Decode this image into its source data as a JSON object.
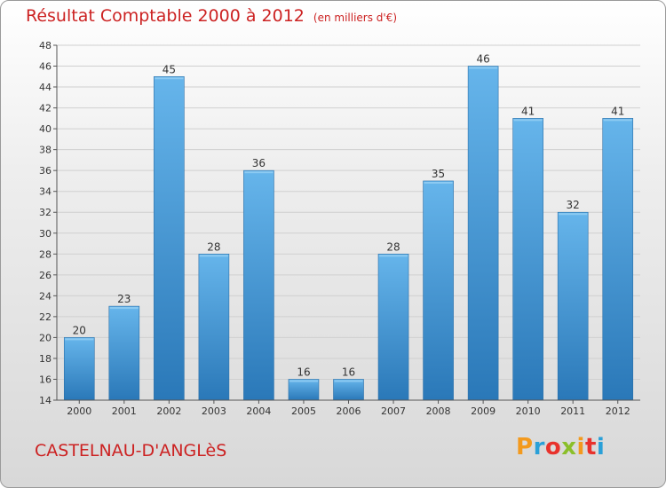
{
  "header": {
    "title": "Résultat Comptable 2000 à 2012",
    "subtitle": "(en milliers d'€)"
  },
  "footer": {
    "city": "CASTELNAU-D'ANGLèS",
    "logo": {
      "letters": [
        "P",
        "r",
        "o",
        "x",
        "i",
        "t",
        "i"
      ],
      "colors": [
        "#f39a1e",
        "#2aa0d8",
        "#e8322c",
        "#8bbf2a",
        "#f39a1e",
        "#e8322c",
        "#2aa0d8"
      ]
    }
  },
  "colors": {
    "bar": "#3d95d8",
    "bar_light": "#63b3ea",
    "bar_dark": "#2a78b8",
    "title": "#cc2222",
    "grid": "#d0d0d0"
  },
  "chart_data": {
    "type": "bar",
    "title": "Résultat Comptable 2000 à 2012",
    "ylabel": "en milliers d'€",
    "xlabel": "",
    "categories": [
      "2000",
      "2001",
      "2002",
      "2003",
      "2004",
      "2005",
      "2006",
      "2007",
      "2008",
      "2009",
      "2010",
      "2011",
      "2012"
    ],
    "values": [
      20,
      23,
      45,
      28,
      36,
      16,
      16,
      28,
      35,
      46,
      41,
      32,
      41
    ],
    "ylim": [
      14,
      48
    ],
    "yticks": [
      14,
      16,
      18,
      20,
      22,
      24,
      26,
      28,
      30,
      32,
      34,
      36,
      38,
      40,
      42,
      44,
      46,
      48
    ],
    "grid": true
  }
}
